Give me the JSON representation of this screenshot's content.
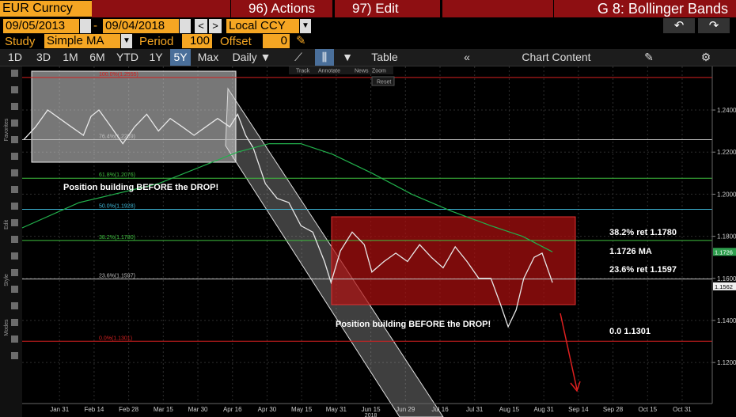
{
  "toolbar": {
    "security": "EUR Curncy",
    "actions": "96) Actions",
    "edit": "97) Edit",
    "function": "G 8: Bollinger Bands",
    "start_date": "09/05/2013",
    "end_date": "09/04/2018",
    "currency": "Local CCY",
    "study_label": "Study",
    "study": "Simple MA",
    "period_label": "Period",
    "period": 100,
    "offset_label": "Offset",
    "offset": 0,
    "ranges": [
      "1D",
      "3D",
      "1M",
      "6M",
      "YTD",
      "1Y",
      "5Y",
      "Max"
    ],
    "active_range": "5Y",
    "frequency": "Daily",
    "table": "Table",
    "chart_content": "Chart Content",
    "chart_tools": [
      "Track",
      "Annotate",
      "News",
      "Zoom"
    ],
    "reset": "Reset"
  },
  "sidebar": [
    "Favorites",
    "Edit",
    "Style",
    "Modes"
  ],
  "chart_data": {
    "type": "line",
    "categories": [
      "Jan 31",
      "Feb 14",
      "Feb 28",
      "Mar 15",
      "Mar 30",
      "Apr 16",
      "Apr 30",
      "May 15",
      "May 31",
      "Jun 15",
      "Jun 29",
      "Jul 16",
      "Jul 31",
      "Aug 15",
      "Aug 31",
      "Sep 14",
      "Sep 28",
      "Oct 15",
      "Oct 31"
    ],
    "year_label": "2018",
    "xlim": [
      -1.08,
      18.87
    ],
    "ylim": [
      1.1005,
      1.2607
    ],
    "yticks": [
      {
        "value": 1.24,
        "label": "1.2400"
      },
      {
        "value": 1.22,
        "label": "1.2200"
      },
      {
        "value": 1.2,
        "label": "1.2000"
      },
      {
        "value": 1.18,
        "label": "1.1800"
      },
      {
        "value": 1.16,
        "label": "1.1600"
      },
      {
        "value": 1.14,
        "label": "1.1400"
      },
      {
        "value": 1.12,
        "label": "1.1200"
      }
    ],
    "grid": true,
    "series": [
      {
        "name": "EUR Curncy",
        "color": "#e8e8e8",
        "x": [
          -1.03,
          -0.69,
          -0.34,
          0,
          0.34,
          0.69,
          0.91,
          1.14,
          1.49,
          1.83,
          2.17,
          2.52,
          2.86,
          3.2,
          3.55,
          3.89,
          4.23,
          4.57,
          4.92,
          5.15,
          5.38,
          5.6,
          5.95,
          6.29,
          6.63,
          6.98,
          7.32,
          7.66,
          7.85,
          8.12,
          8.46,
          8.81,
          9.03,
          9.38,
          9.72,
          10.06,
          10.41,
          10.75,
          11.09,
          11.44,
          11.78,
          12.12,
          12.47,
          12.74,
          12.97,
          13.2,
          13.42,
          13.72,
          13.95,
          14.25
        ],
        "values": [
          1.226,
          1.232,
          1.24,
          1.236,
          1.232,
          1.228,
          1.237,
          1.24,
          1.232,
          1.224,
          1.232,
          1.238,
          1.23,
          1.236,
          1.232,
          1.228,
          1.232,
          1.236,
          1.232,
          1.238,
          1.228,
          1.222,
          1.205,
          1.198,
          1.196,
          1.185,
          1.182,
          1.168,
          1.158,
          1.173,
          1.182,
          1.176,
          1.163,
          1.168,
          1.172,
          1.168,
          1.176,
          1.17,
          1.165,
          1.175,
          1.168,
          1.16,
          1.16,
          1.148,
          1.137,
          1.145,
          1.16,
          1.17,
          1.172,
          1.158
        ]
      },
      {
        "name": "Simple MA",
        "color": "#22b14c",
        "x": [
          -1.08,
          0.57,
          2.86,
          4.23,
          5.15,
          6.06,
          6.98,
          7.89,
          9.03,
          10.18,
          11.32,
          12.47,
          13.38,
          14.25
        ],
        "values": [
          1.184,
          1.196,
          1.205,
          1.214,
          1.22,
          1.224,
          1.224,
          1.219,
          1.21,
          1.2,
          1.192,
          1.185,
          1.18,
          1.1726
        ]
      }
    ],
    "fib_levels": [
      {
        "label": "100.0%(1.2555)",
        "value": 1.2555,
        "color": "#d62020"
      },
      {
        "label": "76.4%(1.2259)",
        "value": 1.2259,
        "color": "#bfbfbf"
      },
      {
        "label": "61.8%(1.2076)",
        "value": 1.2076,
        "color": "#3fbf3f"
      },
      {
        "label": "50.0%(1.1928)",
        "value": 1.1928,
        "color": "#3fb8d8"
      },
      {
        "label": "38.2%(1.1780)",
        "value": 1.178,
        "color": "#3fbf3f"
      },
      {
        "label": "23.6%(1.1597)",
        "value": 1.1597,
        "color": "#bfbfbf"
      },
      {
        "label": "0.0%(1.1301)",
        "value": 1.1301,
        "color": "#d62020"
      }
    ],
    "price_tags": [
      {
        "label": "1.1726",
        "value": 1.1726,
        "color": "#2e9e4e"
      },
      {
        "label": "1.1562",
        "value": 1.1562,
        "color": "#f0f0f0"
      }
    ],
    "annotations": [
      "Position building BEFORE the DROP!",
      "Position building BEFORE the DROP!",
      "38.2% ret 1.1780",
      "1.1726 MA",
      "23.6% ret 1.1597",
      "0.0 1.1301"
    ]
  }
}
